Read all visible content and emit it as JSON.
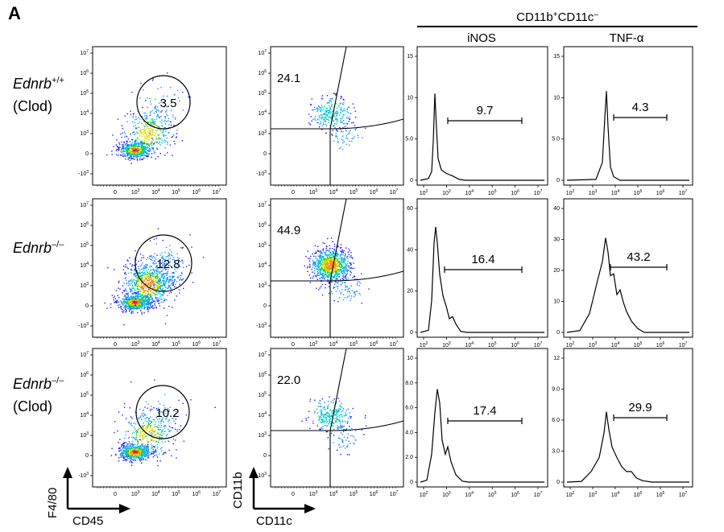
{
  "figure": {
    "panel_letter": "A",
    "header": {
      "population_base": "CD11b",
      "population_sup1": "+",
      "population_mid": "CD11c",
      "population_sup2": "–",
      "col_inos": "iNOS",
      "col_tnf": "TNF-α"
    },
    "rows": [
      {
        "label": "Ednrb",
        "sup": "+/+",
        "sub": "(Clod)"
      },
      {
        "label": "Ednrb",
        "sup": "–/–",
        "sub": ""
      },
      {
        "label": "Ednrb",
        "sup": "–/–",
        "sub": "(Clod)"
      }
    ],
    "axes": {
      "col1_y": "F4/80",
      "col1_x": "CD45",
      "col2_y": "CD11b",
      "col2_x": "CD11c"
    },
    "gates": {
      "circle": [
        "3.5",
        "12.8",
        "10.2"
      ],
      "quadrant": [
        "24.1",
        "44.9",
        "22.0"
      ],
      "inos": [
        "9.7",
        "16.4",
        "17.4"
      ],
      "tnf": [
        "4.3",
        "43.2",
        "29.9"
      ]
    }
  },
  "chart_data": [
    {
      "type": "scatter",
      "title": "F4/80 vs CD45 dot plots",
      "xlabel": "CD45",
      "ylabel": "F4/80",
      "y_ticks": [
        "10^7",
        "10^6",
        "10^5",
        "10^4",
        "10^3",
        "0",
        "-10^3"
      ],
      "x_ticks": [
        "0",
        "10^3",
        "10^4",
        "10^5",
        "10^6",
        "10^7"
      ],
      "gate_percent": [
        3.5,
        12.8,
        10.2
      ],
      "rows": [
        "Ednrb+/+ (Clod)",
        "Ednrb-/-",
        "Ednrb-/- (Clod)"
      ]
    },
    {
      "type": "scatter",
      "title": "CD11b vs CD11c dot plots",
      "xlabel": "CD11c",
      "ylabel": "CD11b",
      "y_ticks": [
        "10^7",
        "10^6",
        "10^5",
        "10^4",
        "10^3",
        "0",
        "-10^3"
      ],
      "x_ticks": [
        "0",
        "10^3",
        "10^4",
        "10^5",
        "10^6",
        "10^7"
      ],
      "gate_percent": [
        24.1,
        44.9,
        22.0
      ]
    },
    {
      "type": "line",
      "title": "iNOS histograms (CD11b+CD11c-)",
      "x_ticks": [
        "10^2",
        "10^3",
        "10^4",
        "10^5",
        "10^6",
        "10^7"
      ],
      "y_ticks_per_row": [
        [
          "0",
          "5.0",
          "10",
          "15"
        ],
        [
          "0",
          "20",
          "40",
          "60"
        ],
        [
          "0",
          "2.0",
          "4.0",
          "6.0",
          "8.0",
          "10"
        ]
      ],
      "ymax_per_row": [
        15,
        60,
        10
      ],
      "peak_counts": [
        10.5,
        51,
        7.5
      ],
      "gate_percent": [
        9.7,
        16.4,
        17.4
      ]
    },
    {
      "type": "line",
      "title": "TNF-α histograms (CD11b+CD11c-)",
      "x_ticks": [
        "10^2",
        "10^3",
        "10^4",
        "10^5",
        "10^6",
        "10^7"
      ],
      "y_ticks_per_row": [
        [
          "0",
          "5.0",
          "10",
          "15"
        ],
        [
          "0",
          "10",
          "20",
          "30",
          "40"
        ],
        [
          "0",
          "3.0",
          "6.0",
          "9.0",
          "12"
        ]
      ],
      "ymax_per_row": [
        15,
        40,
        12
      ],
      "peak_counts": [
        10.8,
        30.5,
        6.8
      ],
      "gate_percent": [
        4.3,
        43.2,
        29.9
      ]
    }
  ]
}
